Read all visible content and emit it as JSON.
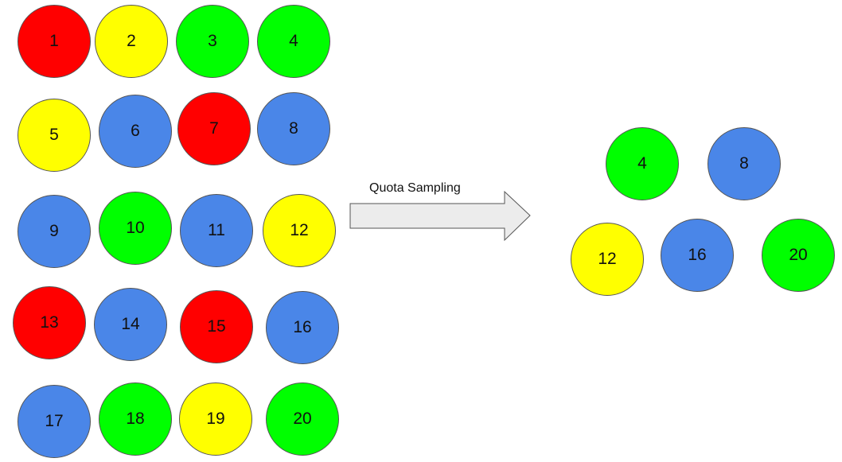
{
  "colors": {
    "red": "#ff0000",
    "yellow": "#ffff00",
    "green": "#00ff00",
    "blue": "#4a86e8"
  },
  "population": [
    {
      "label": "1",
      "color": "red"
    },
    {
      "label": "2",
      "color": "yellow"
    },
    {
      "label": "3",
      "color": "green"
    },
    {
      "label": "4",
      "color": "green"
    },
    {
      "label": "5",
      "color": "yellow"
    },
    {
      "label": "6",
      "color": "blue"
    },
    {
      "label": "7",
      "color": "red"
    },
    {
      "label": "8",
      "color": "blue"
    },
    {
      "label": "9",
      "color": "blue"
    },
    {
      "label": "10",
      "color": "green"
    },
    {
      "label": "11",
      "color": "blue"
    },
    {
      "label": "12",
      "color": "yellow"
    },
    {
      "label": "13",
      "color": "red"
    },
    {
      "label": "14",
      "color": "blue"
    },
    {
      "label": "15",
      "color": "red"
    },
    {
      "label": "16",
      "color": "blue"
    },
    {
      "label": "17",
      "color": "blue"
    },
    {
      "label": "18",
      "color": "green"
    },
    {
      "label": "19",
      "color": "yellow"
    },
    {
      "label": "20",
      "color": "green"
    }
  ],
  "arrow": {
    "label": "Quota Sampling"
  },
  "sample": [
    {
      "label": "4",
      "color": "green"
    },
    {
      "label": "8",
      "color": "blue"
    },
    {
      "label": "12",
      "color": "yellow"
    },
    {
      "label": "16",
      "color": "blue"
    },
    {
      "label": "20",
      "color": "green"
    }
  ]
}
